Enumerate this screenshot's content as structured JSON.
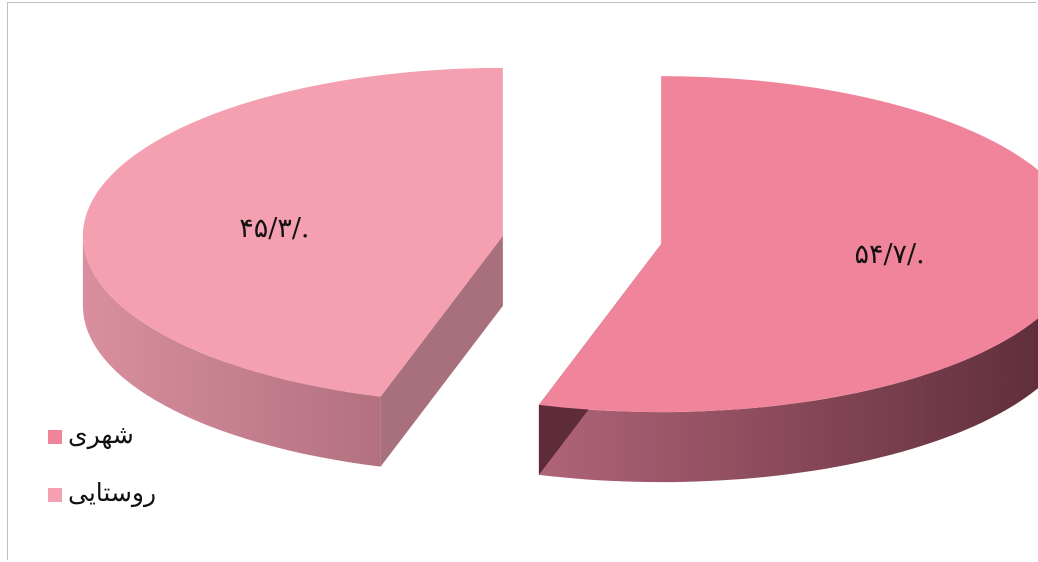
{
  "chart_data": {
    "type": "pie",
    "style": "3d-exploded",
    "slices": [
      {
        "name": "شهری",
        "value": 54.7,
        "label": "۵۴/۷/.",
        "color": "#f0849b",
        "side_color": "#8c4656",
        "side_dark": "#5e2b38"
      },
      {
        "name": "روستایی",
        "value": 45.3,
        "label": "۴۵/۳/.",
        "color": "#f4a0b0",
        "side_color": "#c57d8b",
        "side_dark": "#a8707c"
      }
    ],
    "legend": {
      "position": "bottom-left",
      "items": [
        {
          "label": "شهری",
          "color": "#f0849b"
        },
        {
          "label": "روستایی",
          "color": "#f4a0b0"
        }
      ]
    }
  }
}
